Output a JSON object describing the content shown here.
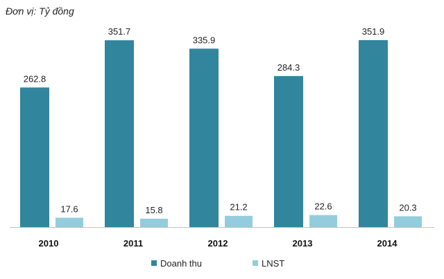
{
  "unit_note": "Đơn vị: Tỷ đồng",
  "chart_data": {
    "type": "bar",
    "categories": [
      "2010",
      "2011",
      "2012",
      "2013",
      "2014"
    ],
    "series": [
      {
        "name": "Doanh thu",
        "values": [
          262.8,
          351.7,
          335.9,
          284.3,
          351.9
        ],
        "color": "#31859c"
      },
      {
        "name": "LNST",
        "values": [
          17.6,
          15.8,
          21.2,
          22.6,
          20.3
        ],
        "color": "#93cddd"
      }
    ],
    "value_labels": {
      "Doanh thu": [
        "262.8",
        "351.7",
        "335.9",
        "284.3",
        "351.9"
      ],
      "LNST": [
        "17.6",
        "15.8",
        "21.2",
        "22.6",
        "20.3"
      ]
    },
    "ylim": [
      0,
      351.9
    ],
    "grid": false,
    "legend_position": "bottom"
  }
}
